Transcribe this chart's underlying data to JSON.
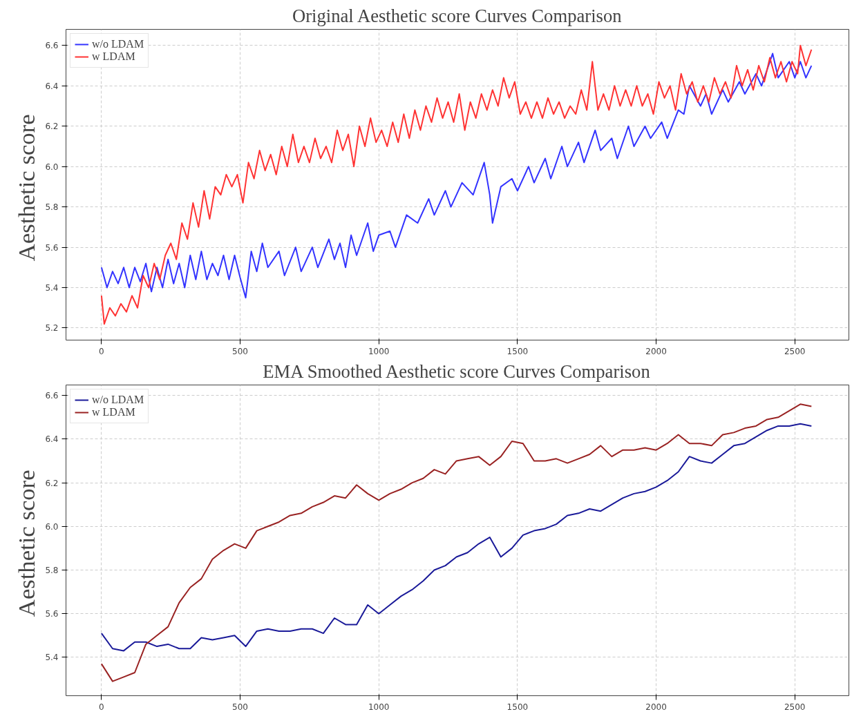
{
  "chart_data": [
    {
      "type": "line",
      "title": "Original Aesthetic score Curves Comparison",
      "ylabel": "Aesthetic  score",
      "xlim": [
        -128,
        2695
      ],
      "ylim": [
        5.14,
        6.68
      ],
      "xticks": [
        0,
        500,
        1000,
        1500,
        2000,
        2500
      ],
      "yticks": [
        5.2,
        5.4,
        5.6,
        5.8,
        {
          "value": 6,
          "label": "6.0"
        },
        6.2,
        6.4,
        6.6
      ],
      "grid": true,
      "legend": "top left",
      "line_style": "solid",
      "series": [
        {
          "name": "w/o LDAM",
          "color": "#3333ff",
          "x": [
            0,
            20,
            40,
            60,
            80,
            100,
            120,
            140,
            160,
            180,
            200,
            220,
            240,
            260,
            280,
            300,
            320,
            340,
            360,
            380,
            400,
            420,
            440,
            460,
            480,
            500,
            520,
            540,
            560,
            580,
            600,
            640,
            660,
            700,
            720,
            760,
            780,
            820,
            840,
            860,
            880,
            900,
            920,
            960,
            980,
            1000,
            1040,
            1060,
            1100,
            1140,
            1180,
            1200,
            1240,
            1260,
            1300,
            1340,
            1380,
            1400,
            1410,
            1440,
            1480,
            1500,
            1540,
            1560,
            1600,
            1620,
            1660,
            1680,
            1720,
            1740,
            1780,
            1800,
            1840,
            1860,
            1900,
            1920,
            1960,
            1980,
            2020,
            2040,
            2080,
            2100,
            2120,
            2160,
            2180,
            2200,
            2240,
            2260,
            2300,
            2320,
            2360,
            2380,
            2420,
            2440,
            2480,
            2500,
            2520,
            2540,
            2560
          ],
          "values": [
            5.5,
            5.4,
            5.48,
            5.42,
            5.5,
            5.4,
            5.5,
            5.43,
            5.52,
            5.38,
            5.5,
            5.4,
            5.54,
            5.42,
            5.52,
            5.4,
            5.56,
            5.44,
            5.58,
            5.44,
            5.52,
            5.46,
            5.56,
            5.44,
            5.56,
            5.45,
            5.35,
            5.58,
            5.48,
            5.62,
            5.5,
            5.58,
            5.46,
            5.6,
            5.48,
            5.6,
            5.5,
            5.64,
            5.54,
            5.62,
            5.5,
            5.66,
            5.56,
            5.72,
            5.58,
            5.66,
            5.68,
            5.6,
            5.76,
            5.72,
            5.84,
            5.76,
            5.88,
            5.8,
            5.92,
            5.86,
            6.02,
            5.86,
            5.72,
            5.9,
            5.94,
            5.88,
            6.0,
            5.92,
            6.04,
            5.94,
            6.1,
            6.0,
            6.12,
            6.02,
            6.18,
            6.08,
            6.14,
            6.04,
            6.2,
            6.1,
            6.2,
            6.14,
            6.22,
            6.14,
            6.28,
            6.26,
            6.4,
            6.3,
            6.36,
            6.26,
            6.38,
            6.32,
            6.42,
            6.36,
            6.46,
            6.4,
            6.56,
            6.44,
            6.52,
            6.44,
            6.52,
            6.44,
            6.5
          ]
        },
        {
          "name": "w LDAM",
          "color": "#ff3333",
          "x": [
            0,
            10,
            30,
            50,
            70,
            90,
            110,
            130,
            150,
            170,
            190,
            210,
            230,
            250,
            270,
            290,
            310,
            330,
            350,
            370,
            390,
            410,
            430,
            450,
            470,
            490,
            510,
            530,
            550,
            570,
            590,
            610,
            630,
            650,
            670,
            690,
            710,
            730,
            750,
            770,
            790,
            810,
            830,
            850,
            870,
            890,
            910,
            930,
            950,
            970,
            990,
            1010,
            1030,
            1050,
            1070,
            1090,
            1110,
            1130,
            1150,
            1170,
            1190,
            1210,
            1230,
            1250,
            1270,
            1290,
            1310,
            1330,
            1350,
            1370,
            1390,
            1410,
            1430,
            1450,
            1470,
            1490,
            1510,
            1530,
            1550,
            1570,
            1590,
            1610,
            1630,
            1650,
            1670,
            1690,
            1710,
            1730,
            1750,
            1770,
            1790,
            1810,
            1830,
            1850,
            1870,
            1890,
            1910,
            1930,
            1950,
            1970,
            1990,
            2010,
            2030,
            2050,
            2070,
            2090,
            2110,
            2130,
            2150,
            2170,
            2190,
            2210,
            2230,
            2250,
            2270,
            2290,
            2310,
            2330,
            2350,
            2370,
            2390,
            2410,
            2430,
            2450,
            2470,
            2490,
            2510,
            2520,
            2540,
            2560
          ],
          "values": [
            5.36,
            5.22,
            5.3,
            5.26,
            5.32,
            5.28,
            5.36,
            5.3,
            5.46,
            5.4,
            5.52,
            5.44,
            5.56,
            5.62,
            5.54,
            5.72,
            5.64,
            5.82,
            5.7,
            5.88,
            5.74,
            5.9,
            5.86,
            5.96,
            5.9,
            5.96,
            5.82,
            6.02,
            5.94,
            6.08,
            5.98,
            6.06,
            5.96,
            6.1,
            6.0,
            6.16,
            6.02,
            6.1,
            6.02,
            6.14,
            6.04,
            6.1,
            6.02,
            6.18,
            6.08,
            6.16,
            6.0,
            6.2,
            6.1,
            6.24,
            6.12,
            6.18,
            6.1,
            6.22,
            6.12,
            6.26,
            6.14,
            6.28,
            6.18,
            6.3,
            6.22,
            6.34,
            6.24,
            6.32,
            6.22,
            6.36,
            6.18,
            6.32,
            6.24,
            6.36,
            6.28,
            6.38,
            6.3,
            6.44,
            6.34,
            6.42,
            6.26,
            6.32,
            6.24,
            6.32,
            6.24,
            6.34,
            6.26,
            6.32,
            6.24,
            6.3,
            6.26,
            6.38,
            6.28,
            6.52,
            6.28,
            6.36,
            6.28,
            6.4,
            6.3,
            6.38,
            6.3,
            6.4,
            6.3,
            6.36,
            6.26,
            6.42,
            6.34,
            6.4,
            6.28,
            6.46,
            6.36,
            6.42,
            6.32,
            6.4,
            6.32,
            6.44,
            6.36,
            6.42,
            6.34,
            6.5,
            6.4,
            6.48,
            6.38,
            6.5,
            6.42,
            6.54,
            6.44,
            6.52,
            6.42,
            6.52,
            6.46,
            6.6,
            6.5,
            6.58
          ]
        }
      ]
    },
    {
      "type": "line",
      "title": "EMA Smoothed Aesthetic score Curves Comparison",
      "ylabel": "Aesthetic  score",
      "xlim": [
        -128,
        2695
      ],
      "ylim": [
        5.224,
        6.648
      ],
      "xticks": [
        0,
        500,
        1000,
        1500,
        2000,
        2500
      ],
      "yticks": [
        5.4,
        5.6,
        5.8,
        {
          "value": 6,
          "label": "6.0"
        },
        6.2,
        6.4,
        6.6
      ],
      "grid": true,
      "legend": "top left",
      "line_style": "solid",
      "x": [
        0,
        40,
        80,
        120,
        160,
        200,
        240,
        280,
        320,
        360,
        400,
        440,
        480,
        520,
        560,
        600,
        640,
        680,
        720,
        760,
        800,
        840,
        880,
        920,
        960,
        1000,
        1040,
        1080,
        1120,
        1160,
        1200,
        1240,
        1280,
        1320,
        1360,
        1400,
        1440,
        1480,
        1520,
        1560,
        1600,
        1640,
        1680,
        1720,
        1760,
        1800,
        1840,
        1880,
        1920,
        1960,
        2000,
        2040,
        2080,
        2120,
        2160,
        2200,
        2240,
        2280,
        2320,
        2360,
        2400,
        2440,
        2480,
        2520,
        2560
      ],
      "series": [
        {
          "name": "w/o LDAM",
          "color": "#1a1a99",
          "values": [
            5.51,
            5.44,
            5.43,
            5.47,
            5.47,
            5.45,
            5.46,
            5.44,
            5.44,
            5.49,
            5.48,
            5.49,
            5.5,
            5.45,
            5.52,
            5.53,
            5.52,
            5.52,
            5.53,
            5.53,
            5.51,
            5.58,
            5.55,
            5.55,
            5.64,
            5.6,
            5.64,
            5.68,
            5.71,
            5.75,
            5.8,
            5.82,
            5.86,
            5.88,
            5.92,
            5.95,
            5.86,
            5.9,
            5.96,
            5.98,
            5.99,
            6.01,
            6.05,
            6.06,
            6.08,
            6.07,
            6.1,
            6.13,
            6.15,
            6.16,
            6.18,
            6.21,
            6.25,
            6.32,
            6.3,
            6.29,
            6.33,
            6.37,
            6.38,
            6.41,
            6.44,
            6.46,
            6.46,
            6.47,
            6.46
          ]
        },
        {
          "name": "w LDAM",
          "color": "#992222",
          "values": [
            5.37,
            5.29,
            5.31,
            5.33,
            5.46,
            5.5,
            5.54,
            5.65,
            5.72,
            5.76,
            5.85,
            5.89,
            5.92,
            5.9,
            5.98,
            6.0,
            6.02,
            6.05,
            6.06,
            6.09,
            6.11,
            6.14,
            6.13,
            6.19,
            6.15,
            6.12,
            6.15,
            6.17,
            6.2,
            6.22,
            6.26,
            6.24,
            6.3,
            6.31,
            6.32,
            6.28,
            6.32,
            6.39,
            6.38,
            6.3,
            6.3,
            6.31,
            6.29,
            6.31,
            6.33,
            6.37,
            6.32,
            6.35,
            6.35,
            6.36,
            6.35,
            6.38,
            6.42,
            6.38,
            6.38,
            6.37,
            6.42,
            6.43,
            6.45,
            6.46,
            6.49,
            6.5,
            6.53,
            6.56,
            6.55
          ]
        }
      ]
    }
  ]
}
